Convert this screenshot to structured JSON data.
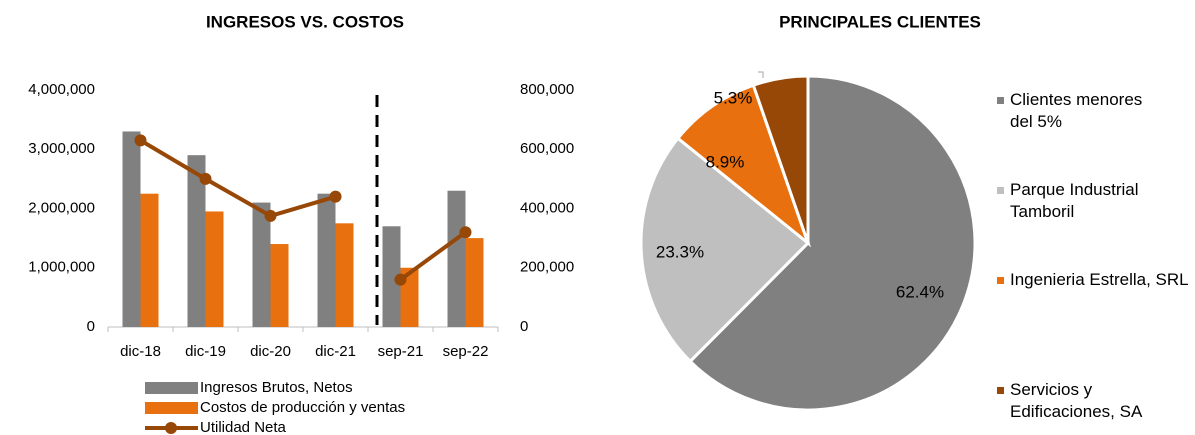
{
  "chart_data": [
    {
      "type": "bar_line",
      "title": "INGRESOS VS. COSTOS",
      "categories": [
        "dic-18",
        "dic-19",
        "dic-20",
        "dic-21",
        "sep-21",
        "sep-22"
      ],
      "series": [
        {
          "name": "Ingresos Brutos, Netos",
          "color": "#808080",
          "values": [
            3300000,
            2900000,
            2100000,
            2250000,
            1700000,
            2300000
          ]
        },
        {
          "name": "Costos de producción y ventas",
          "color": "#e8700f",
          "values": [
            2250000,
            1950000,
            1400000,
            1750000,
            1000000,
            1500000
          ]
        },
        {
          "name": "Utilidad Neta",
          "color": "#974706",
          "axis": "y2",
          "values": [
            630000,
            500000,
            375000,
            440000,
            160000,
            320000
          ]
        }
      ],
      "ylim": [
        0,
        4000000
      ],
      "yticks": [
        0,
        {
          "value": 1000000,
          "label": "1,000,000"
        },
        {
          "value": 2000000,
          "label": "2,000,000"
        },
        {
          "value": 3000000,
          "label": "3,000,000"
        },
        {
          "value": 4000000,
          "label": "4,000,000"
        }
      ],
      "y2lim": [
        0,
        800000
      ],
      "y2ticks": [
        0,
        {
          "value": 200000,
          "label": "200,000"
        },
        {
          "value": 400000,
          "label": "400,000"
        },
        {
          "value": 600000,
          "label": "600,000"
        },
        {
          "value": 800000,
          "label": "800,000"
        }
      ]
    },
    {
      "type": "pie",
      "title": "PRINCIPALES CLIENTES",
      "categories": [
        "Clientes menores del 5%",
        "Parque Industrial Tamboril",
        "Ingenieria Estrella, SRL",
        "Servicios y Edificaciones, SA"
      ],
      "values": [
        62.4,
        23.3,
        8.9,
        5.3
      ],
      "value_labels": [
        "62.4%",
        "23.3%",
        "8.9%",
        "5.3%"
      ],
      "colors": [
        "#808080",
        "#bfbfbf",
        "#e8700f",
        "#974706"
      ]
    }
  ]
}
